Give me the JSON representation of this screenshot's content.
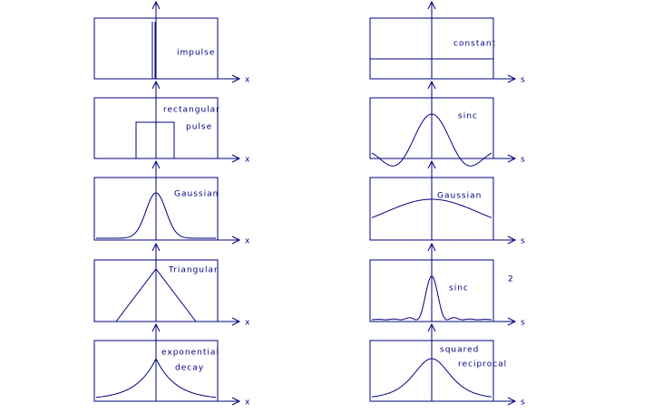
{
  "rows": [
    {
      "left": {
        "labels": [
          "impulse"
        ],
        "axis": "x"
      },
      "right": {
        "labels": [
          "constant"
        ],
        "axis": "s"
      }
    },
    {
      "left": {
        "labels": [
          "rectangular",
          "pulse"
        ],
        "axis": "x"
      },
      "right": {
        "labels": [
          "sinc"
        ],
        "axis": "s"
      }
    },
    {
      "left": {
        "labels": [
          "Gaussian"
        ],
        "axis": "x"
      },
      "right": {
        "labels": [
          "Gaussian"
        ],
        "axis": "s"
      }
    },
    {
      "left": {
        "labels": [
          "Triangular"
        ],
        "axis": "x"
      },
      "right": {
        "labels": [
          "sinc"
        ],
        "superscript": "2",
        "axis": "s"
      }
    },
    {
      "left": {
        "labels": [
          "exponential",
          "decay"
        ],
        "axis": "x"
      },
      "right": {
        "labels": [
          "squared",
          "reciprocal"
        ],
        "axis": "s"
      }
    }
  ]
}
